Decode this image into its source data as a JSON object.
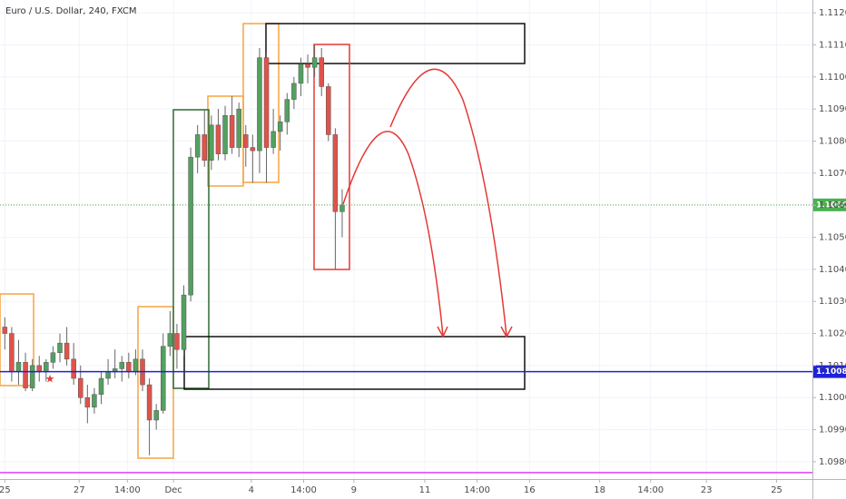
{
  "chart_data": {
    "type": "candlestick",
    "title": "Euro / U.S. Dollar, 240, FXCM",
    "x": [
      0,
      1,
      2,
      3,
      4,
      5,
      6,
      7,
      8,
      9,
      10,
      11,
      12,
      13,
      14,
      15,
      16,
      17,
      18,
      19,
      20,
      21,
      22,
      23,
      24,
      25,
      26,
      27,
      28,
      29,
      30,
      31,
      32,
      33,
      34,
      35,
      36,
      37,
      38,
      39,
      40,
      41,
      42,
      43,
      44,
      45,
      46,
      47,
      48,
      49
    ],
    "open": [
      1.1022,
      1.102,
      1.1008,
      1.1011,
      1.1003,
      1.101,
      1.1008,
      1.1011,
      1.1014,
      1.1017,
      1.1012,
      1.1006,
      1.1,
      1.0997,
      1.1001,
      1.1006,
      1.1008,
      1.1009,
      1.1011,
      1.1008,
      1.1012,
      1.1004,
      1.0993,
      1.0996,
      1.1016,
      1.102,
      1.1015,
      1.1032,
      1.1075,
      1.1082,
      1.1074,
      1.1085,
      1.1076,
      1.1088,
      1.1078,
      1.1082,
      1.1078,
      1.1077,
      1.1106,
      1.1078,
      1.1083,
      1.1086,
      1.1093,
      1.1098,
      1.1104,
      1.1103,
      1.1106,
      1.1097,
      1.1082,
      1.1058
    ],
    "high": [
      1.1025,
      1.1022,
      1.1018,
      1.1014,
      1.1012,
      1.1013,
      1.1012,
      1.1016,
      1.102,
      1.1022,
      1.1017,
      1.101,
      1.1004,
      1.1003,
      1.1008,
      1.1012,
      1.1015,
      1.1013,
      1.1014,
      1.1015,
      1.1015,
      1.1006,
      1.0998,
      1.102,
      1.1027,
      1.1023,
      1.1035,
      1.1078,
      1.1085,
      1.109,
      1.1088,
      1.109,
      1.1091,
      1.1094,
      1.1092,
      1.1085,
      1.1082,
      1.1109,
      1.1108,
      1.109,
      1.1088,
      1.1095,
      1.11,
      1.1106,
      1.1107,
      1.111,
      1.1109,
      1.1098,
      1.1084,
      1.1065
    ],
    "low": [
      1.1015,
      1.1005,
      1.1004,
      1.1002,
      1.1002,
      1.1005,
      1.1005,
      1.1009,
      1.1011,
      1.101,
      1.1004,
      1.0998,
      1.0992,
      1.0995,
      1.0998,
      1.1004,
      1.1006,
      1.1005,
      1.1006,
      1.1007,
      1.1002,
      1.0982,
      1.099,
      1.0995,
      1.1013,
      1.1009,
      1.1013,
      1.103,
      1.107,
      1.1072,
      1.1071,
      1.1074,
      1.1074,
      1.1076,
      1.1075,
      1.1072,
      1.1067,
      1.107,
      1.1067,
      1.1076,
      1.1077,
      1.1082,
      1.109,
      1.1094,
      1.1098,
      1.11,
      1.1094,
      1.108,
      1.104,
      1.105
    ],
    "close": [
      1.102,
      1.1008,
      1.1011,
      1.1003,
      1.101,
      1.1008,
      1.1011,
      1.1014,
      1.1017,
      1.1012,
      1.1006,
      1.1,
      1.0997,
      1.1001,
      1.1006,
      1.1008,
      1.1009,
      1.1011,
      1.1008,
      1.1012,
      1.1004,
      1.0993,
      1.0996,
      1.1016,
      1.102,
      1.1015,
      1.1032,
      1.1075,
      1.1082,
      1.1074,
      1.1085,
      1.1076,
      1.1088,
      1.1078,
      1.109,
      1.1078,
      1.1077,
      1.1106,
      1.1078,
      1.1083,
      1.1086,
      1.1093,
      1.1098,
      1.1104,
      1.1103,
      1.1106,
      1.1097,
      1.1082,
      1.1058,
      1.10601
    ],
    "up_color": "#53a05f",
    "down_color": "#e0534a",
    "xlim": [
      -0.7,
      117.3
    ],
    "xticks": [
      {
        "value": 0,
        "label": "25"
      },
      {
        "value": 10.8,
        "label": "27"
      },
      {
        "value": 17.8,
        "label": "14:00"
      },
      {
        "value": 24.5,
        "label": "Dec"
      },
      {
        "value": 35.8,
        "label": "4"
      },
      {
        "value": 43.4,
        "label": "14:00"
      },
      {
        "value": 50.7,
        "label": "9"
      },
      {
        "value": 61,
        "label": "11"
      },
      {
        "value": 68.6,
        "label": "14:00"
      },
      {
        "value": 76.2,
        "label": "16"
      },
      {
        "value": 86.4,
        "label": "18"
      },
      {
        "value": 93.8,
        "label": "14:00"
      },
      {
        "value": 101.9,
        "label": "23"
      },
      {
        "value": 112.1,
        "label": "25"
      }
    ],
    "ylim": [
      1.09746,
      1.1124
    ],
    "yticks": [
      {
        "value": 1.098,
        "label": "1.09800"
      },
      {
        "value": 1.099,
        "label": "1.09900"
      },
      {
        "value": 1.1,
        "label": "1.10000"
      },
      {
        "value": 1.101,
        "label": "1.10100"
      },
      {
        "value": 1.102,
        "label": "1.10200"
      },
      {
        "value": 1.103,
        "label": "1.10300"
      },
      {
        "value": 1.104,
        "label": "1.10400"
      },
      {
        "value": 1.105,
        "label": "1.10500"
      },
      {
        "value": 1.106,
        "label": "1.10600"
      },
      {
        "value": 1.107,
        "label": "1.10700"
      },
      {
        "value": 1.108,
        "label": "1.10800"
      },
      {
        "value": 1.109,
        "label": "1.10900"
      },
      {
        "value": 1.11,
        "label": "1.11000"
      },
      {
        "value": 1.111,
        "label": "1.11100"
      },
      {
        "value": 1.112,
        "label": "1.11200"
      }
    ],
    "grid": true,
    "price_lines": [
      {
        "value": 1.10601,
        "color": "#4caf50",
        "dashed": true,
        "labeled": true
      },
      {
        "value": 1.10081,
        "color": "#1e22d8",
        "dashed": false,
        "labeled": true
      },
      {
        "value": 1.09766,
        "color": "#e040fb",
        "dashed": false,
        "labeled": false
      }
    ]
  }
}
